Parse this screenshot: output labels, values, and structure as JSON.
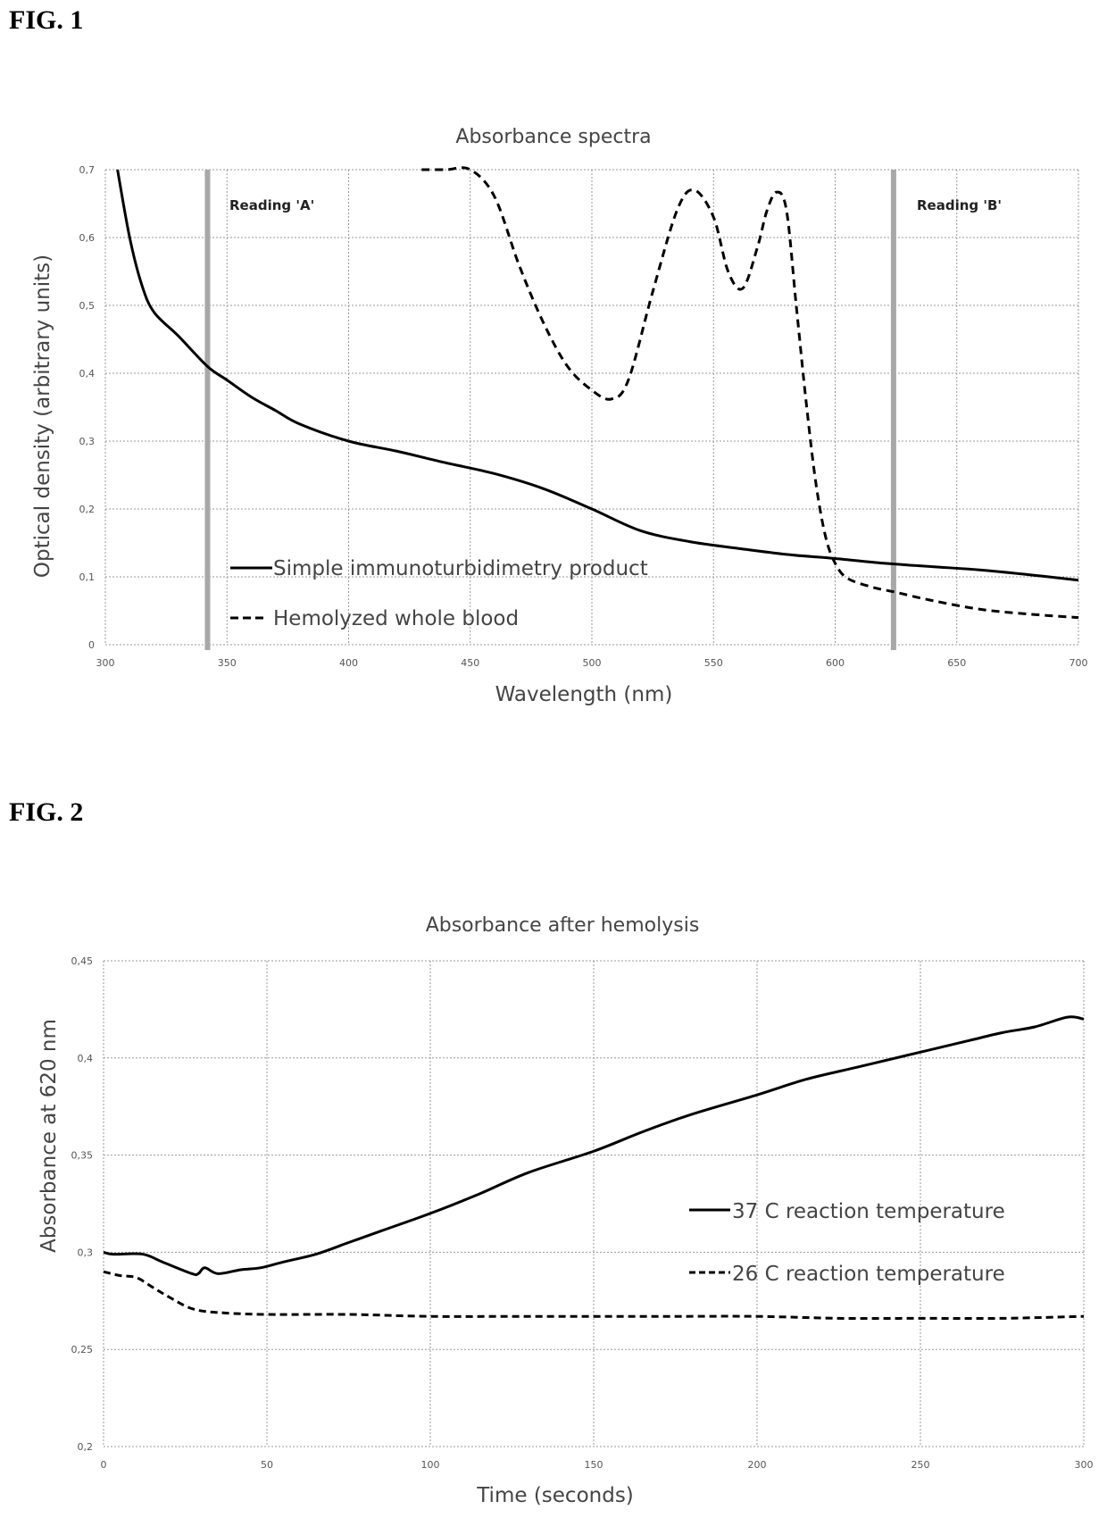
{
  "figures": {
    "fig1_label": "FIG. 1",
    "fig2_label": "FIG. 2"
  },
  "chart_data": [
    {
      "type": "line",
      "title": "Absorbance spectra",
      "xlabel": "Wavelength (nm)",
      "ylabel": "Optical density (arbitrary units)",
      "xlim": [
        300,
        700
      ],
      "ylim": [
        0,
        0.7
      ],
      "xticks": [
        300,
        350,
        400,
        450,
        500,
        550,
        600,
        650,
        700
      ],
      "xtick_labels": [
        "300",
        "350",
        "400",
        "450",
        "500",
        "550",
        "600",
        "650",
        "700"
      ],
      "yticks": [
        0,
        0.1,
        0.2,
        0.3,
        0.4,
        0.5,
        0.6,
        0.7
      ],
      "ytick_labels": [
        "0",
        "0,1",
        "0,2",
        "0,3",
        "0,4",
        "0,5",
        "0,6",
        "0,7"
      ],
      "grid": true,
      "legend_position": "bottom-left",
      "annotations": [
        {
          "label": "Reading 'A'",
          "x": 342
        },
        {
          "label": "Reading 'B'",
          "x": 624
        }
      ],
      "series": [
        {
          "name": "Simple immunoturbidimetry product",
          "style": "solid",
          "x": [
            305,
            310,
            315,
            320,
            330,
            342,
            350,
            360,
            370,
            380,
            400,
            420,
            440,
            460,
            480,
            500,
            520,
            540,
            560,
            580,
            600,
            620,
            640,
            660,
            680,
            700
          ],
          "y": [
            0.7,
            0.6,
            0.53,
            0.49,
            0.455,
            0.41,
            0.39,
            0.365,
            0.345,
            0.325,
            0.3,
            0.285,
            0.268,
            0.252,
            0.23,
            0.2,
            0.168,
            0.152,
            0.142,
            0.133,
            0.127,
            0.12,
            0.115,
            0.11,
            0.103,
            0.095
          ]
        },
        {
          "name": "Hemolyzed whole blood",
          "style": "dashed",
          "x": [
            430,
            440,
            450,
            460,
            470,
            480,
            490,
            500,
            508,
            515,
            525,
            535,
            542,
            550,
            556,
            562,
            568,
            572,
            576,
            580,
            584,
            588,
            592,
            596,
            600,
            605,
            615,
            624,
            640,
            660,
            680,
            700
          ],
          "y": [
            0.7,
            0.7,
            0.7,
            0.66,
            0.56,
            0.475,
            0.41,
            0.375,
            0.362,
            0.39,
            0.52,
            0.64,
            0.67,
            0.63,
            0.55,
            0.525,
            0.585,
            0.64,
            0.667,
            0.64,
            0.5,
            0.36,
            0.24,
            0.16,
            0.12,
            0.098,
            0.085,
            0.078,
            0.065,
            0.052,
            0.045,
            0.04
          ]
        }
      ]
    },
    {
      "type": "line",
      "title": "Absorbance after hemolysis",
      "xlabel": "Time (seconds)",
      "ylabel": "Absorbance at 620 nm",
      "xlim": [
        0,
        300
      ],
      "ylim": [
        0.2,
        0.45
      ],
      "xticks": [
        0,
        50,
        100,
        150,
        200,
        250,
        300
      ],
      "xtick_labels": [
        "0",
        "50",
        "100",
        "150",
        "200",
        "250",
        "300"
      ],
      "yticks": [
        0.2,
        0.25,
        0.3,
        0.35,
        0.4,
        0.45
      ],
      "ytick_labels": [
        "0,2",
        "0,25",
        "0,3",
        "0,35",
        "0,4",
        "0,45"
      ],
      "grid": true,
      "legend_position": "center-right",
      "series": [
        {
          "name": "37 C reaction temperature",
          "style": "solid",
          "x": [
            0,
            3,
            12,
            18,
            27,
            29,
            31,
            35,
            42,
            48,
            55,
            65,
            75,
            85,
            100,
            115,
            130,
            150,
            165,
            180,
            200,
            215,
            230,
            245,
            255,
            265,
            275,
            285,
            295,
            300
          ],
          "y": [
            0.3,
            0.299,
            0.299,
            0.295,
            0.289,
            0.289,
            0.292,
            0.289,
            0.291,
            0.292,
            0.295,
            0.299,
            0.305,
            0.311,
            0.32,
            0.33,
            0.341,
            0.352,
            0.362,
            0.371,
            0.381,
            0.389,
            0.395,
            0.401,
            0.405,
            0.409,
            0.413,
            0.416,
            0.421,
            0.42
          ]
        },
        {
          "name": "26 C reaction temperature",
          "style": "dashed",
          "x": [
            0,
            5,
            10,
            15,
            20,
            27,
            35,
            50,
            75,
            100,
            125,
            150,
            175,
            200,
            225,
            250,
            275,
            300
          ],
          "y": [
            0.29,
            0.288,
            0.287,
            0.282,
            0.277,
            0.271,
            0.269,
            0.268,
            0.268,
            0.267,
            0.267,
            0.267,
            0.267,
            0.267,
            0.266,
            0.266,
            0.266,
            0.267
          ]
        }
      ]
    }
  ]
}
